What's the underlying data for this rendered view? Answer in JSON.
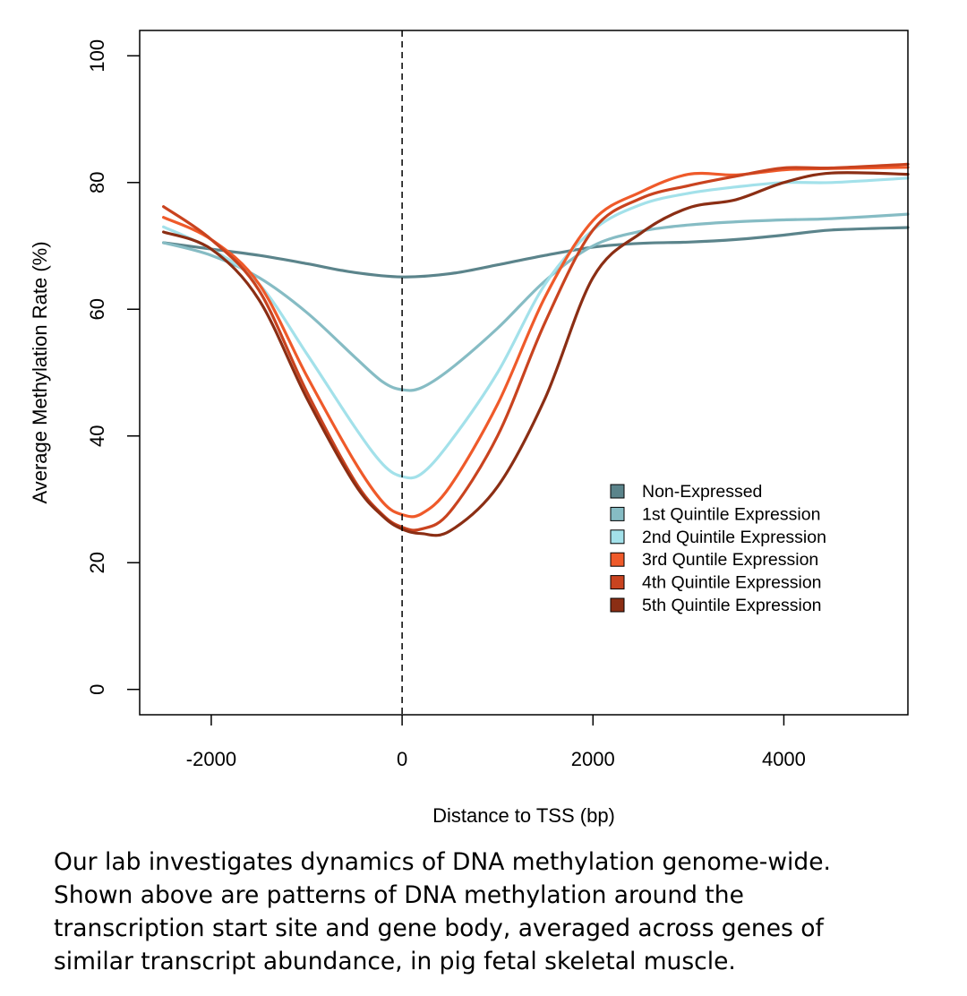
{
  "chart_data": {
    "type": "line",
    "xlabel": "Distance to TSS (bp)",
    "ylabel": "Average Methylation Rate (%)",
    "xlim": [
      -2750,
      5300
    ],
    "ylim": [
      -4,
      104
    ],
    "xticks": [
      -2000,
      0,
      2000,
      4000
    ],
    "xtick_labels": [
      "-2000",
      "0",
      "2000",
      "4000"
    ],
    "yticks": [
      0,
      20,
      40,
      60,
      80,
      100
    ],
    "ytick_labels": [
      "0",
      "20",
      "40",
      "60",
      "80",
      "100"
    ],
    "vline_x": 0,
    "vline_style": "dashed",
    "grid": false,
    "legend_position": "bottom-right",
    "series": [
      {
        "name": "Non-Expressed",
        "color": "#5b848b",
        "x": [
          -2500,
          -2000,
          -1500,
          -1000,
          -500,
          0,
          500,
          1000,
          1500,
          2000,
          2500,
          3000,
          3500,
          4000,
          4500,
          5300
        ],
        "y": [
          70.5,
          69.5,
          68.5,
          67.2,
          65.8,
          65.1,
          65.6,
          67.0,
          68.5,
          69.8,
          70.4,
          70.6,
          71.0,
          71.7,
          72.5,
          72.9
        ]
      },
      {
        "name": "1st Quintile Expression",
        "color": "#86bcc4",
        "x": [
          -2500,
          -2000,
          -1500,
          -1000,
          -500,
          -200,
          0,
          200,
          500,
          1000,
          1500,
          2000,
          2500,
          3000,
          3500,
          4000,
          4500,
          5300
        ],
        "y": [
          70.5,
          68.5,
          65.0,
          59.5,
          52.5,
          48.5,
          47.3,
          47.6,
          50.5,
          57.0,
          64.5,
          70.0,
          72.3,
          73.3,
          73.8,
          74.1,
          74.3,
          75.0
        ]
      },
      {
        "name": "2nd Quintile Expression",
        "color": "#a3e1ea",
        "x": [
          -2500,
          -2000,
          -1500,
          -1000,
          -500,
          -200,
          0,
          200,
          500,
          1000,
          1500,
          2000,
          2500,
          3000,
          3500,
          4000,
          4500,
          5300
        ],
        "y": [
          73.0,
          69.5,
          64.0,
          53.0,
          41.5,
          35.5,
          33.6,
          34.0,
          39.0,
          50.0,
          64.0,
          72.5,
          76.5,
          78.3,
          79.3,
          80.0,
          80.0,
          80.7
        ]
      },
      {
        "name": "3rd Quntile Expression",
        "color": "#ef5a2a",
        "x": [
          -2500,
          -2000,
          -1500,
          -1000,
          -500,
          -200,
          0,
          200,
          500,
          1000,
          1500,
          2000,
          2500,
          3000,
          3500,
          4000,
          4500,
          5300
        ],
        "y": [
          74.5,
          71.0,
          64.0,
          49.5,
          36.0,
          29.5,
          27.6,
          27.7,
          32.0,
          45.0,
          62.0,
          74.0,
          78.5,
          81.3,
          81.2,
          82.0,
          82.2,
          82.4
        ]
      },
      {
        "name": "4th Quintile Expression",
        "color": "#c9431f",
        "x": [
          -2500,
          -2000,
          -1500,
          -1000,
          -500,
          -200,
          0,
          200,
          500,
          1000,
          1500,
          2000,
          2500,
          3000,
          3500,
          4000,
          4500,
          5300
        ],
        "y": [
          76.2,
          71.0,
          63.0,
          47.0,
          33.0,
          27.5,
          25.6,
          25.3,
          28.0,
          40.0,
          58.0,
          72.5,
          77.5,
          79.5,
          81.0,
          82.3,
          82.3,
          82.9
        ]
      },
      {
        "name": "5th Quintile Expression",
        "color": "#8b2e14",
        "x": [
          -2500,
          -2000,
          -1500,
          -1000,
          -500,
          -200,
          0,
          200,
          500,
          1000,
          1500,
          2000,
          2500,
          3000,
          3500,
          4000,
          4500,
          5300
        ],
        "y": [
          72.2,
          69.5,
          61.5,
          46.0,
          32.5,
          27.3,
          25.3,
          24.6,
          25.0,
          32.0,
          46.0,
          65.0,
          72.0,
          76.0,
          77.3,
          80.0,
          81.5,
          81.3
        ]
      }
    ]
  },
  "caption": {
    "lines": [
      "Our lab investigates dynamics of DNA methylation genome-wide.",
      "Shown above are patterns of DNA methylation around the",
      "transcription start site and gene body, averaged across genes of",
      "similar transcript abundance, in pig fetal skeletal muscle."
    ]
  }
}
